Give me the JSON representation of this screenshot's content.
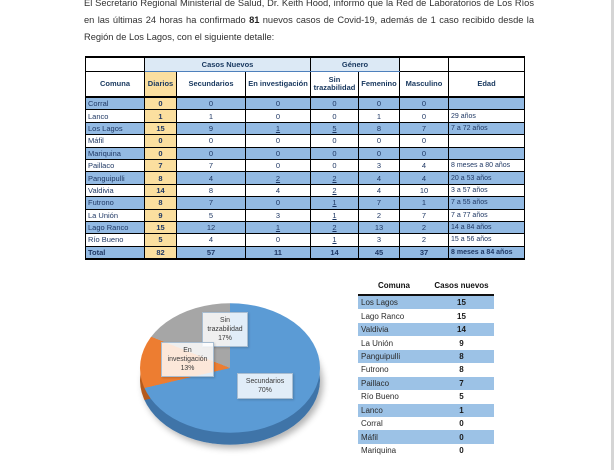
{
  "intro": {
    "text_before_bold": "El Secretario Regional Ministerial de Salud, Dr. Keith Hood, informó que la Red de Laboratorios de Los Ríos en las últimas 24 horas ha confirmado ",
    "bold_value": "81",
    "text_after_bold": " nuevos casos de Covid-19, además de 1 caso recibido desde la Región de Los Lagos, con el siguiente detalle:"
  },
  "table1": {
    "group_headers": {
      "casos_nuevos": "Casos Nuevos",
      "genero": "Género"
    },
    "columns": [
      "Comuna",
      "Diarios",
      "Secundarios",
      "En investigación",
      "Sin trazabilidad",
      "Femenino",
      "Masculino",
      "Edad"
    ],
    "rows": [
      {
        "comuna": "Corral",
        "diarios": "0",
        "secundarios": "0",
        "en_investigacion": "0",
        "sin_trazabilidad": "0",
        "femenino": "0",
        "masculino": "0",
        "edad": "",
        "u": []
      },
      {
        "comuna": "Lanco",
        "diarios": "1",
        "secundarios": "1",
        "en_investigacion": "0",
        "sin_trazabilidad": "0",
        "femenino": "1",
        "masculino": "0",
        "edad": "29 años",
        "u": []
      },
      {
        "comuna": "Los Lagos",
        "diarios": "15",
        "secundarios": "9",
        "en_investigacion": "1",
        "sin_trazabilidad": "5",
        "femenino": "8",
        "masculino": "7",
        "edad": "7 a 72 años",
        "u": [
          "en_investigacion",
          "sin_trazabilidad"
        ]
      },
      {
        "comuna": "Máfil",
        "diarios": "0",
        "secundarios": "0",
        "en_investigacion": "0",
        "sin_trazabilidad": "0",
        "femenino": "0",
        "masculino": "0",
        "edad": "",
        "u": []
      },
      {
        "comuna": "Mariquina",
        "diarios": "0",
        "secundarios": "0",
        "en_investigacion": "0",
        "sin_trazabilidad": "0",
        "femenino": "0",
        "masculino": "0",
        "edad": "",
        "u": []
      },
      {
        "comuna": "Paillaco",
        "diarios": "7",
        "secundarios": "7",
        "en_investigacion": "0",
        "sin_trazabilidad": "0",
        "femenino": "3",
        "masculino": "4",
        "edad": "8 meses a 80 años",
        "u": []
      },
      {
        "comuna": "Panguipulli",
        "diarios": "8",
        "secundarios": "4",
        "en_investigacion": "2",
        "sin_trazabilidad": "2",
        "femenino": "4",
        "masculino": "4",
        "edad": "20 a 53 años",
        "u": [
          "en_investigacion",
          "sin_trazabilidad"
        ]
      },
      {
        "comuna": "Valdivia",
        "diarios": "14",
        "secundarios": "8",
        "en_investigacion": "4",
        "sin_trazabilidad": "2",
        "femenino": "4",
        "masculino": "10",
        "edad": "3 a 57 años",
        "u": [
          "sin_trazabilidad"
        ]
      },
      {
        "comuna": "Futrono",
        "diarios": "8",
        "secundarios": "7",
        "en_investigacion": "0",
        "sin_trazabilidad": "1",
        "femenino": "7",
        "masculino": "1",
        "edad": "7 a 55 años",
        "u": [
          "sin_trazabilidad"
        ]
      },
      {
        "comuna": "La Unión",
        "diarios": "9",
        "secundarios": "5",
        "en_investigacion": "3",
        "sin_trazabilidad": "1",
        "femenino": "2",
        "masculino": "7",
        "edad": "7 a 77 años",
        "u": [
          "sin_trazabilidad"
        ]
      },
      {
        "comuna": "Lago Ranco",
        "diarios": "15",
        "secundarios": "12",
        "en_investigacion": "1",
        "sin_trazabilidad": "2",
        "femenino": "13",
        "masculino": "2",
        "edad": "14 a 84 años",
        "u": [
          "en_investigacion",
          "sin_trazabilidad"
        ]
      },
      {
        "comuna": "Río Bueno",
        "diarios": "5",
        "secundarios": "4",
        "en_investigacion": "0",
        "sin_trazabilidad": "1",
        "femenino": "3",
        "masculino": "2",
        "edad": "15 a 56 años",
        "u": [
          "sin_trazabilidad"
        ]
      }
    ],
    "total_row": {
      "comuna": "Total",
      "diarios": "82",
      "secundarios": "57",
      "en_investigacion": "11",
      "sin_trazabilidad": "14",
      "femenino": "45",
      "masculino": "37",
      "edad": "8 meses a 84 años"
    }
  },
  "chart_data": {
    "type": "pie",
    "title": "",
    "legend_position": "none",
    "labels": [
      "Secundarios",
      "En investigación",
      "Sin trazabilidad"
    ],
    "values": [
      70,
      13,
      17
    ],
    "slices": [
      {
        "label": "Secundarios",
        "pct": "70%",
        "value": 70,
        "color": "#5B9BD5",
        "side_color": "#3F74A8"
      },
      {
        "label": "En investigación",
        "pct": "13%",
        "value": 13,
        "color": "#ED7D31",
        "side_color": "#B55A1B"
      },
      {
        "label": "Sin trazabilidad",
        "pct": "17%",
        "value": 17,
        "color": "#A6A6A6",
        "side_color": "#7F7F7F"
      }
    ]
  },
  "table2": {
    "headers": [
      "Comuna",
      "Casos nuevos"
    ],
    "rows": [
      {
        "comuna": "Los Lagos",
        "casos": "15"
      },
      {
        "comuna": "Lago Ranco",
        "casos": "15"
      },
      {
        "comuna": "Valdivia",
        "casos": "14"
      },
      {
        "comuna": "La Unión",
        "casos": "9"
      },
      {
        "comuna": "Panguipulli",
        "casos": "8"
      },
      {
        "comuna": "Futrono",
        "casos": "8"
      },
      {
        "comuna": "Paillaco",
        "casos": "7"
      },
      {
        "comuna": "Río Bueno",
        "casos": "5"
      },
      {
        "comuna": "Lanco",
        "casos": "1"
      },
      {
        "comuna": "Corral",
        "casos": "0"
      },
      {
        "comuna": "Máfil",
        "casos": "0"
      },
      {
        "comuna": "Mariquina",
        "casos": "0"
      }
    ]
  },
  "colors": {
    "table1_row_blue": "#93BAE3",
    "table2_row_blue": "#9CC2E6",
    "diarios_yellow": "#FBDF9F",
    "group_header_fill": "#DCE9F5",
    "header_text": "#17375E"
  }
}
